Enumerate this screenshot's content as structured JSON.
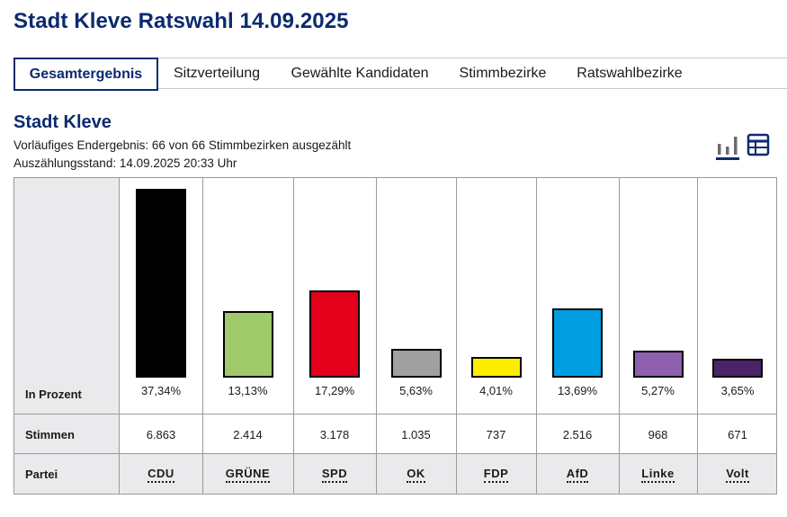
{
  "header": {
    "title": "Stadt Kleve Ratswahl 14.09.2025"
  },
  "tabs": [
    {
      "label": "Gesamtergebnis",
      "active": true
    },
    {
      "label": "Sitzverteilung",
      "active": false
    },
    {
      "label": "Gewählte Kandidaten",
      "active": false
    },
    {
      "label": "Stimmbezirke",
      "active": false
    },
    {
      "label": "Ratswahlbezirke",
      "active": false
    }
  ],
  "section": {
    "title": "Stadt Kleve",
    "status": "Vorläufiges Endergebnis: 66 von 66 Stimmbezirken ausgezählt",
    "timestamp": "Auszählungsstand: 14.09.2025 20:33 Uhr"
  },
  "view_toggle": {
    "chart_icon": "bar-chart-icon",
    "table_icon": "table-icon",
    "active": "chart"
  },
  "row_labels": {
    "percent": "In Prozent",
    "votes": "Stimmen",
    "party": "Partei"
  },
  "chart_data": {
    "type": "bar",
    "title": "Stadt Kleve",
    "ylabel": "In Prozent",
    "ylim": [
      0,
      37.34
    ],
    "categories": [
      "CDU",
      "GRÜNE",
      "SPD",
      "OK",
      "FDP",
      "AfD",
      "Linke",
      "Volt"
    ],
    "values": [
      37.34,
      13.13,
      17.29,
      5.63,
      4.01,
      13.69,
      5.27,
      3.65
    ],
    "value_labels": [
      "37,34%",
      "13,13%",
      "17,29%",
      "5,63%",
      "4,01%",
      "13,69%",
      "5,27%",
      "3,65%"
    ],
    "votes": [
      "6.863",
      "2.414",
      "3.178",
      "1.035",
      "737",
      "2.516",
      "968",
      "671"
    ],
    "colors": [
      "#000000",
      "#a0c96a",
      "#e2001a",
      "#a0a0a0",
      "#ffed00",
      "#009ee0",
      "#8e5fae",
      "#4b2467"
    ]
  }
}
